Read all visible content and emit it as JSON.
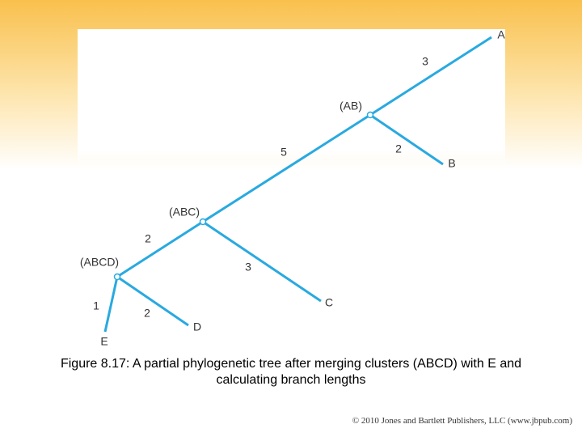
{
  "figure": {
    "nodes": [
      {
        "label": "A"
      },
      {
        "label": "B"
      },
      {
        "label": "C"
      },
      {
        "label": "D"
      },
      {
        "label": "E"
      },
      {
        "label": "(AB)"
      },
      {
        "label": "(ABC)"
      },
      {
        "label": "(ABCD)"
      }
    ],
    "edges": [
      {
        "label": "3"
      },
      {
        "label": "2"
      },
      {
        "label": "5"
      },
      {
        "label": "3"
      },
      {
        "label": "2"
      },
      {
        "label": "2"
      },
      {
        "label": "1"
      }
    ],
    "caption": "Figure 8.17: A partial phylogenetic tree after merging clusters (ABCD) with E and calculating branch lengths",
    "copyright": "© 2010 Jones and Bartlett Publishers, LLC (www.jbpub.com)"
  }
}
